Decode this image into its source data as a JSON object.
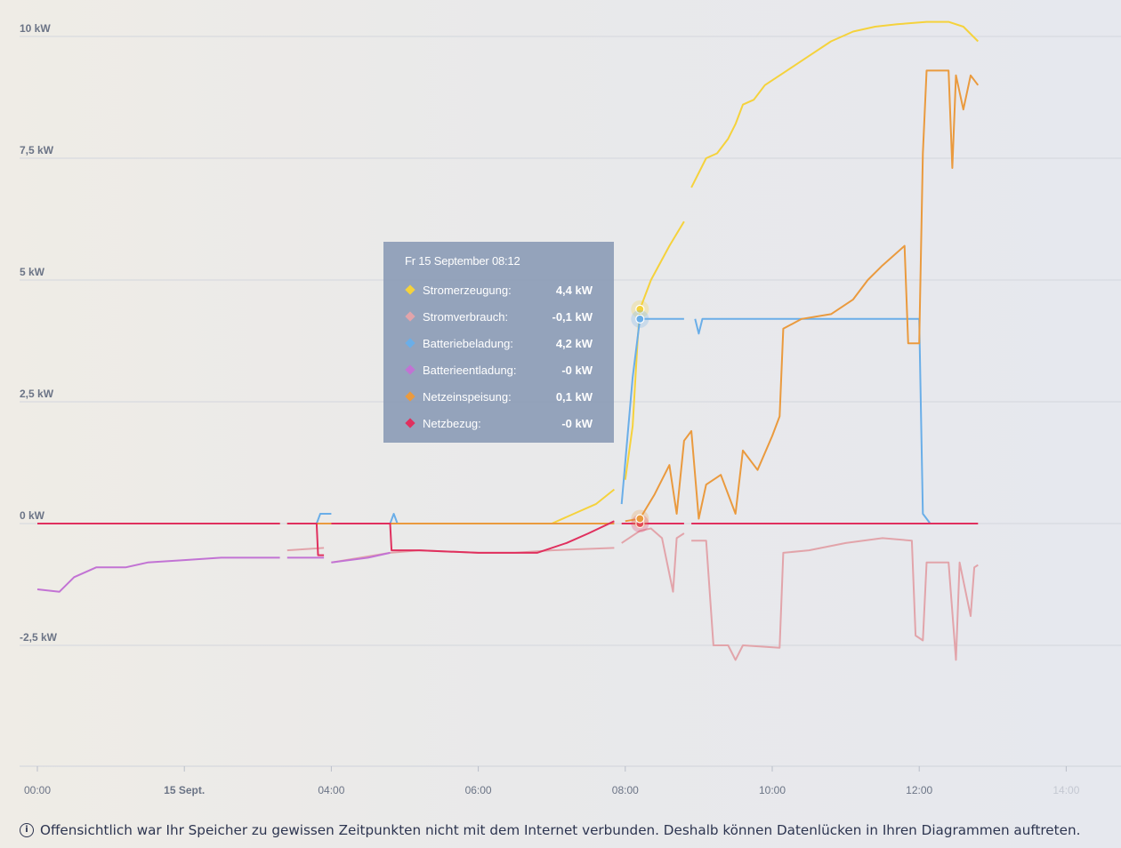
{
  "chart_data": {
    "type": "line",
    "unit": "kW",
    "y_ticks": [
      "10 kW",
      "7,5 kW",
      "5 kW",
      "2,5 kW",
      "0 kW",
      "-2,5 kW"
    ],
    "y_tick_values": [
      10,
      7.5,
      5,
      2.5,
      0,
      -2.5
    ],
    "ylim": [
      -5,
      10.5
    ],
    "x_ticks": [
      "00:00",
      "15 Sept.",
      "04:00",
      "06:00",
      "08:00",
      "10:00",
      "12:00",
      "14:00"
    ],
    "x_tick_hours": [
      0,
      2,
      4,
      6,
      8,
      10,
      12,
      14
    ],
    "xlim_hours": [
      0,
      14
    ],
    "grid": true,
    "series": [
      {
        "name": "Stromerzeugung",
        "color": "#f5d23c",
        "points": [
          [
            0,
            0
          ],
          [
            3.3,
            0
          ],
          [
            3.3,
            null
          ],
          [
            3.4,
            0
          ],
          [
            4.0,
            0
          ],
          [
            4.0,
            null
          ],
          [
            4.1,
            0
          ],
          [
            7.0,
            0
          ],
          [
            7.3,
            0.2
          ],
          [
            7.6,
            0.4
          ],
          [
            7.85,
            0.7
          ],
          [
            7.85,
            null
          ],
          [
            8.0,
            0.9
          ],
          [
            8.1,
            2.0
          ],
          [
            8.17,
            3.8
          ],
          [
            8.2,
            4.4
          ],
          [
            8.35,
            5.0
          ],
          [
            8.6,
            5.7
          ],
          [
            8.8,
            6.2
          ],
          [
            8.8,
            null
          ],
          [
            8.9,
            6.9
          ],
          [
            9.1,
            7.5
          ],
          [
            9.25,
            7.6
          ],
          [
            9.4,
            7.9
          ],
          [
            9.5,
            8.2
          ],
          [
            9.6,
            8.6
          ],
          [
            9.75,
            8.7
          ],
          [
            9.9,
            9.0
          ],
          [
            10.2,
            9.3
          ],
          [
            10.5,
            9.6
          ],
          [
            10.8,
            9.9
          ],
          [
            11.1,
            10.1
          ],
          [
            11.4,
            10.2
          ],
          [
            11.7,
            10.25
          ],
          [
            12.1,
            10.3
          ],
          [
            12.4,
            10.3
          ],
          [
            12.6,
            10.2
          ],
          [
            12.8,
            9.9
          ]
        ]
      },
      {
        "name": "Stromverbrauch",
        "color": "#e2a4aa",
        "points": [
          [
            0,
            0
          ],
          [
            3.3,
            0
          ],
          [
            3.3,
            null
          ],
          [
            3.4,
            -0.55
          ],
          [
            3.9,
            -0.5
          ],
          [
            3.9,
            null
          ],
          [
            4.0,
            -0.8
          ],
          [
            4.8,
            -0.6
          ],
          [
            5.2,
            -0.55
          ],
          [
            6.0,
            -0.6
          ],
          [
            6.5,
            -0.6
          ],
          [
            7.0,
            -0.55
          ],
          [
            7.85,
            -0.5
          ],
          [
            7.85,
            null
          ],
          [
            7.95,
            -0.4
          ],
          [
            8.2,
            -0.15
          ],
          [
            8.35,
            -0.1
          ],
          [
            8.5,
            -0.3
          ],
          [
            8.65,
            -1.4
          ],
          [
            8.7,
            -0.3
          ],
          [
            8.8,
            -0.2
          ],
          [
            8.8,
            null
          ],
          [
            8.9,
            -0.35
          ],
          [
            9.1,
            -0.35
          ],
          [
            9.2,
            -2.5
          ],
          [
            9.4,
            -2.5
          ],
          [
            9.5,
            -2.8
          ],
          [
            9.6,
            -2.5
          ],
          [
            10.1,
            -2.55
          ],
          [
            10.15,
            -0.6
          ],
          [
            10.5,
            -0.55
          ],
          [
            11.0,
            -0.4
          ],
          [
            11.5,
            -0.3
          ],
          [
            11.9,
            -0.35
          ],
          [
            11.95,
            -2.3
          ],
          [
            12.05,
            -2.4
          ],
          [
            12.1,
            -0.8
          ],
          [
            12.4,
            -0.8
          ],
          [
            12.5,
            -2.8
          ],
          [
            12.55,
            -0.8
          ],
          [
            12.7,
            -1.9
          ],
          [
            12.75,
            -0.9
          ],
          [
            12.8,
            -0.85
          ]
        ]
      },
      {
        "name": "Batteriebeladung",
        "color": "#6aaee8",
        "points": [
          [
            3.8,
            0
          ],
          [
            3.85,
            0.2
          ],
          [
            4.0,
            0.2
          ],
          [
            4.0,
            null
          ],
          [
            4.8,
            0
          ],
          [
            4.85,
            0.2
          ],
          [
            4.9,
            0
          ],
          [
            4.9,
            null
          ],
          [
            7.95,
            0.4
          ],
          [
            8.1,
            3.0
          ],
          [
            8.2,
            4.2
          ],
          [
            8.8,
            4.2
          ],
          [
            8.8,
            null
          ],
          [
            8.95,
            4.2
          ],
          [
            9.0,
            3.9
          ],
          [
            9.05,
            4.2
          ],
          [
            12.0,
            4.2
          ],
          [
            12.05,
            0.2
          ],
          [
            12.15,
            0
          ]
        ]
      },
      {
        "name": "Batterieentladung",
        "color": "#c273d4",
        "points": [
          [
            0,
            -1.35
          ],
          [
            0.3,
            -1.4
          ],
          [
            0.5,
            -1.1
          ],
          [
            0.8,
            -0.9
          ],
          [
            1.2,
            -0.9
          ],
          [
            1.5,
            -0.8
          ],
          [
            2.0,
            -0.75
          ],
          [
            2.5,
            -0.7
          ],
          [
            3.0,
            -0.7
          ],
          [
            3.3,
            -0.7
          ],
          [
            3.3,
            null
          ],
          [
            3.4,
            -0.7
          ],
          [
            3.9,
            -0.7
          ],
          [
            3.9,
            null
          ],
          [
            4.0,
            -0.8
          ],
          [
            4.5,
            -0.7
          ],
          [
            4.8,
            -0.6
          ]
        ]
      },
      {
        "name": "Netzeinspeisung",
        "color": "#ea9a3e",
        "points": [
          [
            0,
            0
          ],
          [
            3.3,
            0
          ],
          [
            3.3,
            null
          ],
          [
            3.4,
            0
          ],
          [
            4.0,
            0
          ],
          [
            4.0,
            null
          ],
          [
            4.1,
            0
          ],
          [
            7.85,
            0
          ],
          [
            7.85,
            null
          ],
          [
            8.0,
            0.05
          ],
          [
            8.2,
            0.1
          ],
          [
            8.4,
            0.6
          ],
          [
            8.6,
            1.2
          ],
          [
            8.7,
            0.2
          ],
          [
            8.8,
            1.7
          ],
          [
            8.9,
            1.9
          ],
          [
            9.0,
            0.1
          ],
          [
            9.1,
            0.8
          ],
          [
            9.3,
            1.0
          ],
          [
            9.5,
            0.2
          ],
          [
            9.6,
            1.5
          ],
          [
            9.8,
            1.1
          ],
          [
            10.0,
            1.8
          ],
          [
            10.1,
            2.2
          ],
          [
            10.15,
            4.0
          ],
          [
            10.4,
            4.2
          ],
          [
            10.8,
            4.3
          ],
          [
            11.1,
            4.6
          ],
          [
            11.3,
            5.0
          ],
          [
            11.5,
            5.3
          ],
          [
            11.8,
            5.7
          ],
          [
            11.85,
            3.7
          ],
          [
            12.0,
            3.7
          ],
          [
            12.05,
            7.6
          ],
          [
            12.1,
            9.3
          ],
          [
            12.4,
            9.3
          ],
          [
            12.45,
            7.3
          ],
          [
            12.5,
            9.2
          ],
          [
            12.6,
            8.5
          ],
          [
            12.7,
            9.2
          ],
          [
            12.8,
            9.0
          ]
        ]
      },
      {
        "name": "Netzbezug",
        "color": "#e0305e",
        "points": [
          [
            0,
            0
          ],
          [
            3.3,
            0
          ],
          [
            3.3,
            null
          ],
          [
            3.4,
            0
          ],
          [
            3.8,
            0
          ],
          [
            3.82,
            -0.65
          ],
          [
            3.9,
            -0.65
          ],
          [
            3.9,
            null
          ],
          [
            4.0,
            0
          ],
          [
            4.8,
            0
          ],
          [
            4.82,
            -0.55
          ],
          [
            5.2,
            -0.55
          ],
          [
            6.0,
            -0.6
          ],
          [
            6.5,
            -0.6
          ],
          [
            6.8,
            -0.6
          ],
          [
            7.2,
            -0.4
          ],
          [
            7.5,
            -0.2
          ],
          [
            7.85,
            0.05
          ],
          [
            7.85,
            null
          ],
          [
            7.95,
            0
          ],
          [
            8.8,
            0
          ],
          [
            8.8,
            null
          ],
          [
            8.9,
            0
          ],
          [
            12.8,
            0
          ]
        ]
      }
    ],
    "tooltip": {
      "title": "Fr 15 September 08:12",
      "hover_hour": 8.2,
      "rows": [
        {
          "label": "Stromerzeugung:",
          "value": "4,4 kW",
          "color": "#f5d23c"
        },
        {
          "label": "Stromverbrauch:",
          "value": "-0,1 kW",
          "color": "#e2a4aa"
        },
        {
          "label": "Batteriebeladung:",
          "value": "4,2 kW",
          "color": "#6aaee8"
        },
        {
          "label": "Batterieentladung:",
          "value": "-0 kW",
          "color": "#c273d4"
        },
        {
          "label": "Netzeinspeisung:",
          "value": "0,1 kW",
          "color": "#ea9a3e"
        },
        {
          "label": "Netzbezug:",
          "value": "-0 kW",
          "color": "#e0305e"
        }
      ]
    }
  },
  "footer": {
    "icon": "info-icon",
    "note": "Offensichtlich war Ihr Speicher zu gewissen Zeitpunkten nicht mit dem Internet verbunden. Deshalb können Datenlücken in Ihren Diagrammen auftreten."
  }
}
